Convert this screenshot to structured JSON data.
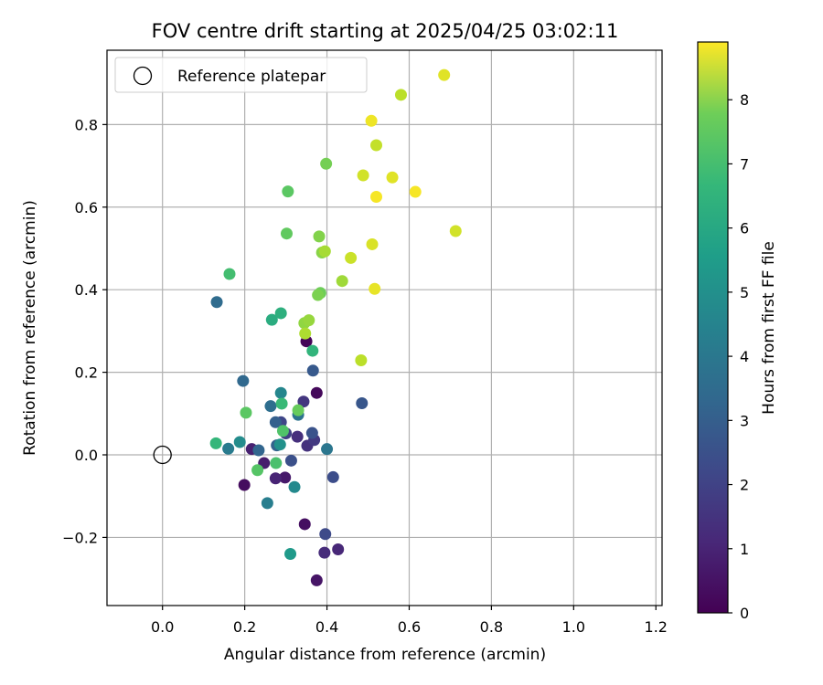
{
  "chart_data": {
    "type": "scatter",
    "title": "FOV centre drift starting at 2025/04/25 03:02:11",
    "xlabel": "Angular distance from reference (arcmin)",
    "ylabel": "Rotation from reference (arcmin)",
    "xlim": [
      -0.135,
      1.215
    ],
    "ylim": [
      -0.365,
      0.98
    ],
    "xticks": [
      0.0,
      0.2,
      0.4,
      0.6,
      0.8,
      1.0,
      1.2
    ],
    "xtick_labels": [
      "0.0",
      "0.2",
      "0.4",
      "0.6",
      "0.8",
      "1.0",
      "1.2"
    ],
    "yticks": [
      -0.2,
      0.0,
      0.2,
      0.4,
      0.6,
      0.8
    ],
    "ytick_labels": [
      "−0.2",
      "0.0",
      "0.2",
      "0.4",
      "0.6",
      "0.8"
    ],
    "grid": true,
    "legend": {
      "placement": "top-left",
      "entries": [
        "Reference platepar"
      ]
    },
    "reference_point": {
      "x": 0.0,
      "y": 0.0
    },
    "colorbar": {
      "label": "Hours from first FF file",
      "colormap": "viridis",
      "min": 0,
      "max": 8.9,
      "ticks": [
        0,
        1,
        2,
        3,
        4,
        5,
        6,
        7,
        8
      ],
      "tick_labels": [
        "0",
        "1",
        "2",
        "3",
        "4",
        "5",
        "6",
        "7",
        "8"
      ]
    },
    "points": [
      {
        "x": 0.35,
        "y": 0.275,
        "c": 0.1
      },
      {
        "x": 0.375,
        "y": 0.15,
        "c": 0.2
      },
      {
        "x": 0.199,
        "y": -0.073,
        "c": 0.3
      },
      {
        "x": 0.346,
        "y": -0.168,
        "c": 0.35
      },
      {
        "x": 0.375,
        "y": -0.304,
        "c": 0.5
      },
      {
        "x": 0.298,
        "y": -0.055,
        "c": 0.6
      },
      {
        "x": 0.247,
        "y": -0.02,
        "c": 0.7
      },
      {
        "x": 0.217,
        "y": 0.014,
        "c": 0.8
      },
      {
        "x": 0.275,
        "y": -0.057,
        "c": 0.9
      },
      {
        "x": 0.427,
        "y": -0.229,
        "c": 1.0
      },
      {
        "x": 0.394,
        "y": -0.237,
        "c": 1.1
      },
      {
        "x": 0.328,
        "y": 0.044,
        "c": 1.2
      },
      {
        "x": 0.352,
        "y": 0.022,
        "c": 1.3
      },
      {
        "x": 0.343,
        "y": 0.129,
        "c": 1.4
      },
      {
        "x": 0.369,
        "y": 0.036,
        "c": 1.5
      },
      {
        "x": 0.3,
        "y": 0.052,
        "c": 1.7
      },
      {
        "x": 0.288,
        "y": 0.079,
        "c": 1.9
      },
      {
        "x": 0.396,
        "y": -0.192,
        "c": 2.0
      },
      {
        "x": 0.415,
        "y": -0.054,
        "c": 2.1
      },
      {
        "x": 0.313,
        "y": -0.014,
        "c": 2.2
      },
      {
        "x": 0.364,
        "y": 0.053,
        "c": 2.3
      },
      {
        "x": 0.485,
        "y": 0.125,
        "c": 2.4
      },
      {
        "x": 0.366,
        "y": 0.204,
        "c": 2.5
      },
      {
        "x": 0.275,
        "y": 0.079,
        "c": 2.7
      },
      {
        "x": 0.278,
        "y": 0.023,
        "c": 2.8
      },
      {
        "x": 0.234,
        "y": 0.011,
        "c": 2.9
      },
      {
        "x": 0.196,
        "y": 0.179,
        "c": 3.0
      },
      {
        "x": 0.132,
        "y": 0.37,
        "c": 3.1
      },
      {
        "x": 0.263,
        "y": 0.118,
        "c": 3.2
      },
      {
        "x": 0.33,
        "y": 0.097,
        "c": 3.4
      },
      {
        "x": 0.4,
        "y": 0.014,
        "c": 3.5
      },
      {
        "x": 0.16,
        "y": 0.015,
        "c": 3.7
      },
      {
        "x": 0.255,
        "y": -0.117,
        "c": 3.8
      },
      {
        "x": 0.288,
        "y": 0.15,
        "c": 4.1
      },
      {
        "x": 0.321,
        "y": -0.078,
        "c": 4.2
      },
      {
        "x": 0.188,
        "y": 0.031,
        "c": 4.3
      },
      {
        "x": 0.286,
        "y": 0.025,
        "c": 4.5
      },
      {
        "x": 0.311,
        "y": -0.24,
        "c": 4.8
      },
      {
        "x": 0.266,
        "y": 0.327,
        "c": 5.5
      },
      {
        "x": 0.288,
        "y": 0.343,
        "c": 5.6
      },
      {
        "x": 0.365,
        "y": 0.252,
        "c": 5.8
      },
      {
        "x": 0.13,
        "y": 0.028,
        "c": 5.9
      },
      {
        "x": 0.29,
        "y": 0.124,
        "c": 6.0
      },
      {
        "x": 0.163,
        "y": 0.438,
        "c": 6.2
      },
      {
        "x": 0.276,
        "y": -0.02,
        "c": 6.3
      },
      {
        "x": 0.293,
        "y": 0.058,
        "c": 6.4
      },
      {
        "x": 0.231,
        "y": -0.037,
        "c": 6.5
      },
      {
        "x": 0.203,
        "y": 0.102,
        "c": 6.6
      },
      {
        "x": 0.305,
        "y": 0.638,
        "c": 6.6
      },
      {
        "x": 0.302,
        "y": 0.536,
        "c": 6.7
      },
      {
        "x": 0.33,
        "y": 0.108,
        "c": 6.8
      },
      {
        "x": 0.384,
        "y": 0.392,
        "c": 6.9
      },
      {
        "x": 0.398,
        "y": 0.705,
        "c": 7.0
      },
      {
        "x": 0.378,
        "y": 0.387,
        "c": 7.1
      },
      {
        "x": 0.381,
        "y": 0.529,
        "c": 7.2
      },
      {
        "x": 0.388,
        "y": 0.49,
        "c": 7.3
      },
      {
        "x": 0.345,
        "y": 0.319,
        "c": 7.4
      },
      {
        "x": 0.356,
        "y": 0.326,
        "c": 7.5
      },
      {
        "x": 0.437,
        "y": 0.421,
        "c": 7.6
      },
      {
        "x": 0.395,
        "y": 0.493,
        "c": 7.7
      },
      {
        "x": 0.347,
        "y": 0.294,
        "c": 7.8
      },
      {
        "x": 0.58,
        "y": 0.872,
        "c": 8.0
      },
      {
        "x": 0.483,
        "y": 0.229,
        "c": 8.0
      },
      {
        "x": 0.52,
        "y": 0.75,
        "c": 8.1
      },
      {
        "x": 0.458,
        "y": 0.477,
        "c": 8.2
      },
      {
        "x": 0.713,
        "y": 0.542,
        "c": 8.3
      },
      {
        "x": 0.488,
        "y": 0.677,
        "c": 8.3
      },
      {
        "x": 0.51,
        "y": 0.51,
        "c": 8.4
      },
      {
        "x": 0.685,
        "y": 0.92,
        "c": 8.5
      },
      {
        "x": 0.559,
        "y": 0.672,
        "c": 8.5
      },
      {
        "x": 0.516,
        "y": 0.402,
        "c": 8.6
      },
      {
        "x": 0.508,
        "y": 0.809,
        "c": 8.7
      },
      {
        "x": 0.615,
        "y": 0.637,
        "c": 8.8
      },
      {
        "x": 0.52,
        "y": 0.625,
        "c": 8.8
      }
    ]
  }
}
